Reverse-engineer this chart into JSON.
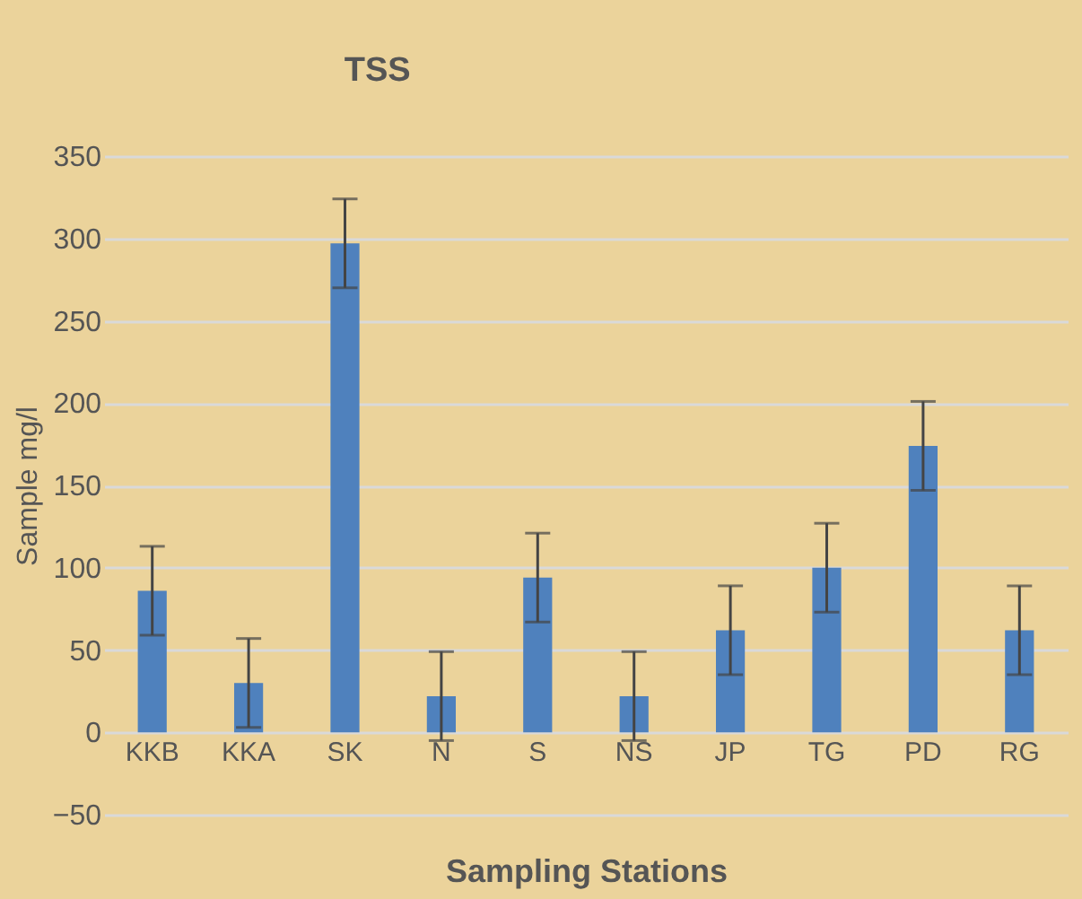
{
  "chart_data": {
    "type": "bar",
    "title": "TSS",
    "xlabel": "Sampling Stations",
    "ylabel": "Sample mg/l",
    "categories": [
      "KKB",
      "KKA",
      "SK",
      "N",
      "S",
      "NS",
      "JP",
      "TG",
      "PD",
      "RG"
    ],
    "values": [
      86,
      30,
      297,
      22,
      94,
      22,
      62,
      100,
      174,
      62
    ],
    "errors": [
      27,
      27,
      27,
      27,
      27,
      27,
      27,
      27,
      27,
      27
    ],
    "color": "#4f81bd",
    "ylim": [
      -50,
      350
    ],
    "yticks": [
      -50,
      0,
      50,
      100,
      150,
      200,
      250,
      300,
      350
    ],
    "grid": true
  }
}
